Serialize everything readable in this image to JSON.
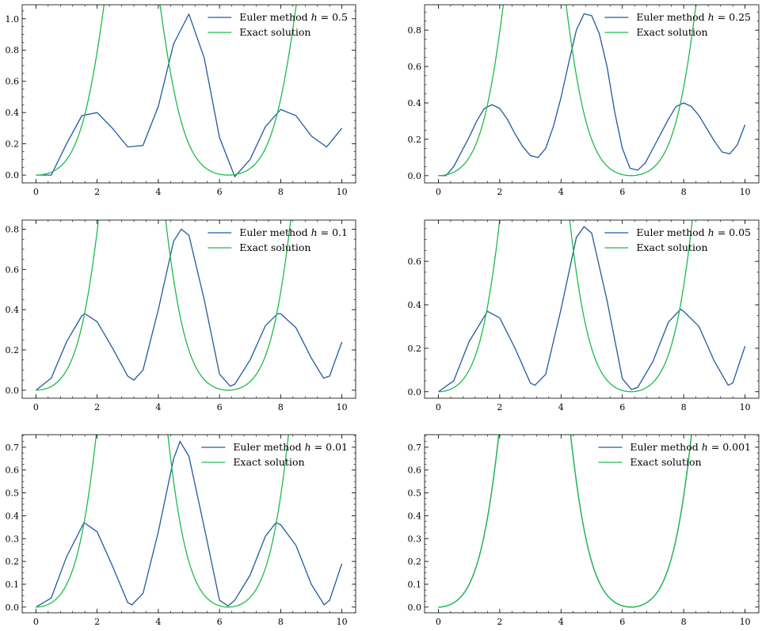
{
  "figure": {
    "colors": {
      "euler": "#1f5aa0",
      "exact": "#1dbb4b",
      "axis": "#000000"
    },
    "function": "exact solution y(t) = (1 - cos t) * exp(-cos t) / e",
    "x_range": [
      0,
      10
    ]
  },
  "chart_data": [
    {
      "type": "line",
      "h": 0.5,
      "x_ticks": [
        0,
        2,
        4,
        6,
        8,
        10
      ],
      "y_ticks": [
        0.0,
        0.2,
        0.4,
        0.6,
        0.8,
        1.0
      ],
      "y_tick_labels": [
        "0.0",
        "0.2",
        "0.4",
        "0.6",
        "0.8",
        "1.0"
      ],
      "ylim": [
        -0.05,
        1.09
      ],
      "legend": {
        "euler_prefix": "Euler method ",
        "h_symbol": "h",
        "euler_suffix": " = 0.5",
        "exact": "Exact solution",
        "position": "top-right"
      },
      "series": [
        {
          "name": "Euler method h = 0.5",
          "values": [
            [
              0,
              0
            ],
            [
              0.5,
              0
            ],
            [
              1,
              0.2
            ],
            [
              1.5,
              0.38
            ],
            [
              2,
              0.4
            ],
            [
              2.5,
              0.3
            ],
            [
              3,
              0.18
            ],
            [
              3.5,
              0.19
            ],
            [
              4,
              0.44
            ],
            [
              4.5,
              0.84
            ],
            [
              5,
              1.03
            ],
            [
              5.5,
              0.75
            ],
            [
              6,
              0.24
            ],
            [
              6.5,
              -0.01
            ],
            [
              7,
              0.1
            ],
            [
              7.5,
              0.31
            ],
            [
              8,
              0.42
            ],
            [
              8.5,
              0.38
            ],
            [
              9,
              0.25
            ],
            [
              9.5,
              0.18
            ],
            [
              10,
              0.3
            ]
          ]
        },
        {
          "name": "Exact solution",
          "function": "exact"
        }
      ]
    },
    {
      "type": "line",
      "h": 0.25,
      "x_ticks": [
        0,
        2,
        4,
        6,
        8,
        10
      ],
      "y_ticks": [
        0.0,
        0.2,
        0.4,
        0.6,
        0.8
      ],
      "y_tick_labels": [
        "0.0",
        "0.2",
        "0.4",
        "0.6",
        "0.8"
      ],
      "ylim": [
        -0.04,
        0.94
      ],
      "legend": {
        "euler_prefix": "Euler method ",
        "h_symbol": "h",
        "euler_suffix": " = 0.25",
        "exact": "Exact solution",
        "position": "top-right"
      },
      "series": [
        {
          "name": "Euler method h = 0.25",
          "values": [
            [
              0,
              0
            ],
            [
              0.25,
              0
            ],
            [
              0.5,
              0.05
            ],
            [
              0.75,
              0.13
            ],
            [
              1,
              0.21
            ],
            [
              1.25,
              0.3
            ],
            [
              1.5,
              0.37
            ],
            [
              1.75,
              0.39
            ],
            [
              2,
              0.37
            ],
            [
              2.25,
              0.31
            ],
            [
              2.5,
              0.23
            ],
            [
              2.75,
              0.16
            ],
            [
              3,
              0.11
            ],
            [
              3.25,
              0.1
            ],
            [
              3.5,
              0.15
            ],
            [
              3.75,
              0.27
            ],
            [
              4,
              0.43
            ],
            [
              4.25,
              0.62
            ],
            [
              4.5,
              0.8
            ],
            [
              4.75,
              0.89
            ],
            [
              5,
              0.88
            ],
            [
              5.25,
              0.78
            ],
            [
              5.5,
              0.6
            ],
            [
              5.75,
              0.35
            ],
            [
              6,
              0.15
            ],
            [
              6.25,
              0.04
            ],
            [
              6.5,
              0.03
            ],
            [
              6.75,
              0.07
            ],
            [
              7,
              0.15
            ],
            [
              7.25,
              0.23
            ],
            [
              7.5,
              0.31
            ],
            [
              7.75,
              0.38
            ],
            [
              8,
              0.4
            ],
            [
              8.25,
              0.38
            ],
            [
              8.5,
              0.33
            ],
            [
              8.75,
              0.26
            ],
            [
              9,
              0.19
            ],
            [
              9.25,
              0.13
            ],
            [
              9.5,
              0.12
            ],
            [
              9.75,
              0.17
            ],
            [
              10,
              0.28
            ]
          ]
        },
        {
          "name": "Exact solution",
          "function": "exact"
        }
      ]
    },
    {
      "type": "line",
      "h": 0.1,
      "x_ticks": [
        0,
        2,
        4,
        6,
        8,
        10
      ],
      "y_ticks": [
        0.0,
        0.2,
        0.4,
        0.6,
        0.8
      ],
      "y_tick_labels": [
        "0.0",
        "0.2",
        "0.4",
        "0.6",
        "0.8"
      ],
      "ylim": [
        -0.04,
        0.845
      ],
      "legend": {
        "euler_prefix": "Euler method ",
        "h_symbol": "h",
        "euler_suffix": " = 0.1",
        "exact": "Exact solution",
        "position": "top-right"
      },
      "series": [
        {
          "name": "Euler method h = 0.1",
          "values": [
            [
              0,
              0
            ],
            [
              0.5,
              0.06
            ],
            [
              1,
              0.24
            ],
            [
              1.5,
              0.37
            ],
            [
              1.6,
              0.38
            ],
            [
              2,
              0.34
            ],
            [
              2.5,
              0.21
            ],
            [
              3,
              0.07
            ],
            [
              3.2,
              0.05
            ],
            [
              3.5,
              0.1
            ],
            [
              4,
              0.4
            ],
            [
              4.5,
              0.74
            ],
            [
              4.75,
              0.8
            ],
            [
              5,
              0.77
            ],
            [
              5.5,
              0.45
            ],
            [
              6,
              0.08
            ],
            [
              6.35,
              0.02
            ],
            [
              6.5,
              0.03
            ],
            [
              7,
              0.15
            ],
            [
              7.5,
              0.32
            ],
            [
              7.9,
              0.38
            ],
            [
              8,
              0.38
            ],
            [
              8.5,
              0.31
            ],
            [
              9,
              0.16
            ],
            [
              9.4,
              0.06
            ],
            [
              9.6,
              0.07
            ],
            [
              10,
              0.24
            ]
          ]
        },
        {
          "name": "Exact solution",
          "function": "exact"
        }
      ]
    },
    {
      "type": "line",
      "h": 0.05,
      "x_ticks": [
        0,
        2,
        4,
        6,
        8,
        10
      ],
      "y_ticks": [
        0.0,
        0.2,
        0.4,
        0.6
      ],
      "y_tick_labels": [
        "0.0",
        "0.2",
        "0.4",
        "0.6"
      ],
      "ylim": [
        -0.03,
        0.79
      ],
      "legend": {
        "euler_prefix": "Euler method ",
        "h_symbol": "h",
        "euler_suffix": " = 0.05",
        "exact": "Exact solution",
        "position": "top-right"
      },
      "series": [
        {
          "name": "Euler method h = 0.05",
          "values": [
            [
              0,
              0
            ],
            [
              0.5,
              0.05
            ],
            [
              1,
              0.23
            ],
            [
              1.6,
              0.37
            ],
            [
              2,
              0.34
            ],
            [
              2.5,
              0.2
            ],
            [
              3,
              0.04
            ],
            [
              3.15,
              0.03
            ],
            [
              3.5,
              0.08
            ],
            [
              4,
              0.38
            ],
            [
              4.5,
              0.71
            ],
            [
              4.75,
              0.76
            ],
            [
              5,
              0.73
            ],
            [
              5.5,
              0.42
            ],
            [
              6,
              0.06
            ],
            [
              6.3,
              0.01
            ],
            [
              6.5,
              0.02
            ],
            [
              7,
              0.14
            ],
            [
              7.5,
              0.32
            ],
            [
              7.9,
              0.38
            ],
            [
              8,
              0.37
            ],
            [
              8.5,
              0.3
            ],
            [
              9,
              0.14
            ],
            [
              9.45,
              0.03
            ],
            [
              9.6,
              0.04
            ],
            [
              10,
              0.21
            ]
          ]
        },
        {
          "name": "Exact solution",
          "function": "exact"
        }
      ]
    },
    {
      "type": "line",
      "h": 0.01,
      "x_ticks": [
        0,
        2,
        4,
        6,
        8,
        10
      ],
      "y_ticks": [
        0.0,
        0.1,
        0.2,
        0.3,
        0.4,
        0.5,
        0.6,
        0.7
      ],
      "y_tick_labels": [
        "0.0",
        "0.1",
        "0.2",
        "0.3",
        "0.4",
        "0.5",
        "0.6",
        "0.7"
      ],
      "ylim": [
        -0.025,
        0.755
      ],
      "legend": {
        "euler_prefix": "Euler method ",
        "h_symbol": "h",
        "euler_suffix": " = 0.01",
        "exact": "Exact solution",
        "position": "top-right"
      },
      "series": [
        {
          "name": "Euler method h = 0.01",
          "values": [
            [
              0,
              0
            ],
            [
              0.5,
              0.04
            ],
            [
              1,
              0.22
            ],
            [
              1.57,
              0.37
            ],
            [
              2,
              0.33
            ],
            [
              2.5,
              0.18
            ],
            [
              3,
              0.02
            ],
            [
              3.14,
              0.01
            ],
            [
              3.5,
              0.06
            ],
            [
              4,
              0.33
            ],
            [
              4.5,
              0.65
            ],
            [
              4.71,
              0.725
            ],
            [
              5,
              0.66
            ],
            [
              5.5,
              0.35
            ],
            [
              6,
              0.03
            ],
            [
              6.28,
              0.005
            ],
            [
              6.5,
              0.03
            ],
            [
              7,
              0.14
            ],
            [
              7.5,
              0.31
            ],
            [
              7.85,
              0.37
            ],
            [
              8,
              0.36
            ],
            [
              8.5,
              0.27
            ],
            [
              9,
              0.1
            ],
            [
              9.42,
              0.01
            ],
            [
              9.6,
              0.03
            ],
            [
              10,
              0.19
            ]
          ]
        },
        {
          "name": "Exact solution",
          "function": "exact"
        }
      ]
    },
    {
      "type": "line",
      "h": 0.001,
      "x_ticks": [
        0,
        2,
        4,
        6,
        8,
        10
      ],
      "y_ticks": [
        0.0,
        0.1,
        0.2,
        0.3,
        0.4,
        0.5,
        0.6,
        0.7
      ],
      "y_tick_labels": [
        "0.0",
        "0.1",
        "0.2",
        "0.3",
        "0.4",
        "0.5",
        "0.6",
        "0.7"
      ],
      "ylim": [
        -0.025,
        0.755
      ],
      "legend": {
        "euler_prefix": "Euler method ",
        "h_symbol": "h",
        "euler_suffix": " = 0.001",
        "exact": "Exact solution",
        "position": "top-right"
      },
      "series": [
        {
          "name": "Euler method h = 0.001",
          "function": "exact"
        },
        {
          "name": "Exact solution",
          "function": "exact"
        }
      ]
    }
  ]
}
